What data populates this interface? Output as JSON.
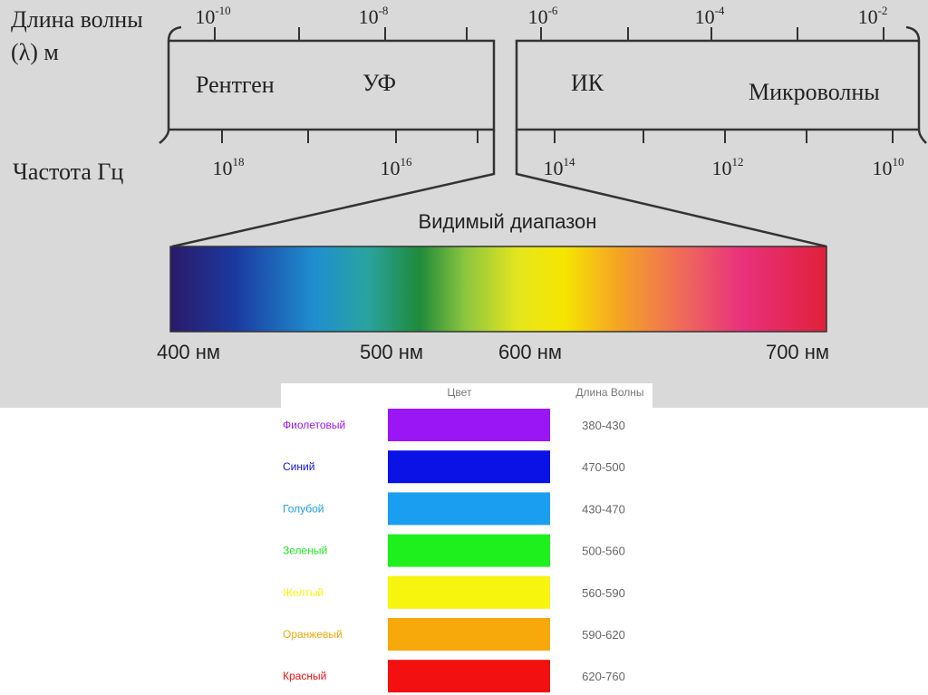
{
  "spectrum": {
    "wavelength_label": "Длина волны",
    "wavelength_unit": "(λ) м",
    "frequency_label": "Частота Гц",
    "wavelength_ticks": [
      {
        "base": "10",
        "exp": "-10"
      },
      {
        "base": "10",
        "exp": "-8"
      },
      {
        "base": "10",
        "exp": "-6"
      },
      {
        "base": "10",
        "exp": "-4"
      },
      {
        "base": "10",
        "exp": "-2"
      }
    ],
    "frequency_ticks": [
      {
        "base": "10",
        "exp": "18"
      },
      {
        "base": "10",
        "exp": "16"
      },
      {
        "base": "10",
        "exp": "14"
      },
      {
        "base": "10",
        "exp": "12"
      },
      {
        "base": "10",
        "exp": "10"
      }
    ],
    "bands": [
      "Рентген",
      "УФ",
      "ИК",
      "Микроволны"
    ],
    "visible_title": "Видимый диапазон",
    "visible_labels": [
      "400 нм",
      "500 нм",
      "600 нм",
      "700 нм"
    ]
  },
  "table": {
    "header": [
      "Цвет",
      "Длина Волны"
    ],
    "rows": [
      {
        "name": "Фиолетовый",
        "range": "380-430",
        "color": "#9b16f5"
      },
      {
        "name": "Синий",
        "range": "470-500",
        "color": "#0a12e6"
      },
      {
        "name": "Голубой",
        "range": "430-470",
        "color": "#1a9ff0"
      },
      {
        "name": "Зеленый",
        "range": "500-560",
        "color": "#1ef01e"
      },
      {
        "name": "Желтый",
        "range": "560-590",
        "color": "#f7f40e"
      },
      {
        "name": "Оранжевый",
        "range": "590-620",
        "color": "#f7a80a"
      },
      {
        "name": "Красный",
        "range": "620-760",
        "color": "#f21010"
      }
    ]
  }
}
